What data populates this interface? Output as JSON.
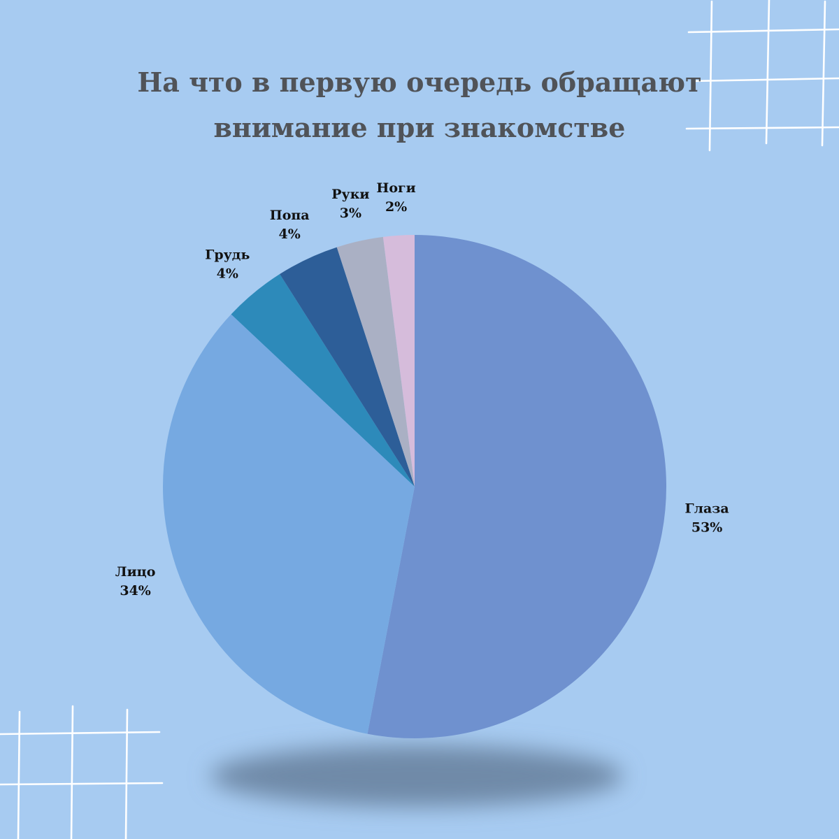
{
  "title": {
    "line1": "На что в первую очередь обращают",
    "line2": "внимание при знакомстве"
  },
  "colors": {
    "background": "#a7cbf1",
    "title": "#505358",
    "label": "#111111",
    "shadow": "#6f8aa8"
  },
  "chart_data": {
    "type": "pie",
    "title": "На что в первую очередь обращают внимание при знакомстве",
    "start": "12 o'clock",
    "direction": "clockwise",
    "legend": "none",
    "slices": [
      {
        "label": "Глаза",
        "value": 53,
        "display": "53%",
        "color": "#6f91cf"
      },
      {
        "label": "Лицо",
        "value": 34,
        "display": "34%",
        "color": "#76a9e1"
      },
      {
        "label": "Грудь",
        "value": 4,
        "display": "4%",
        "color": "#2d8aba"
      },
      {
        "label": "Попа",
        "value": 4,
        "display": "4%",
        "color": "#2d5e98"
      },
      {
        "label": "Руки",
        "value": 3,
        "display": "3%",
        "color": "#aab0c4"
      },
      {
        "label": "Ноги",
        "value": 2,
        "display": "2%",
        "color": "#d6bcdb"
      }
    ]
  }
}
